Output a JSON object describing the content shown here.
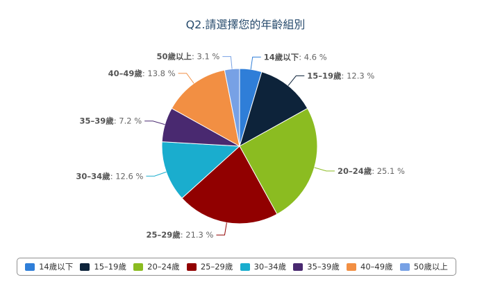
{
  "chart_data": {
    "type": "pie",
    "title": "Q2.請選擇您的年齡組別",
    "categories": [
      "14歲以下",
      "15–19歲",
      "20–24歲",
      "25–29歲",
      "30–34歲",
      "35–39歲",
      "40–49歲",
      "50歲以上"
    ],
    "values": [
      4.6,
      12.3,
      25.1,
      21.3,
      12.6,
      7.2,
      13.8,
      3.1
    ],
    "labels": [
      "4.6 %",
      "12.3 %",
      "25.1 %",
      "21.3 %",
      "12.6 %",
      "7.2 %",
      "13.8 %",
      "3.1 %"
    ],
    "colors": [
      "#2f7ed8",
      "#0d233a",
      "#8bbc21",
      "#910000",
      "#1aadce",
      "#492970",
      "#f28f43",
      "#77a1e5"
    ],
    "legend_position": "bottom"
  }
}
